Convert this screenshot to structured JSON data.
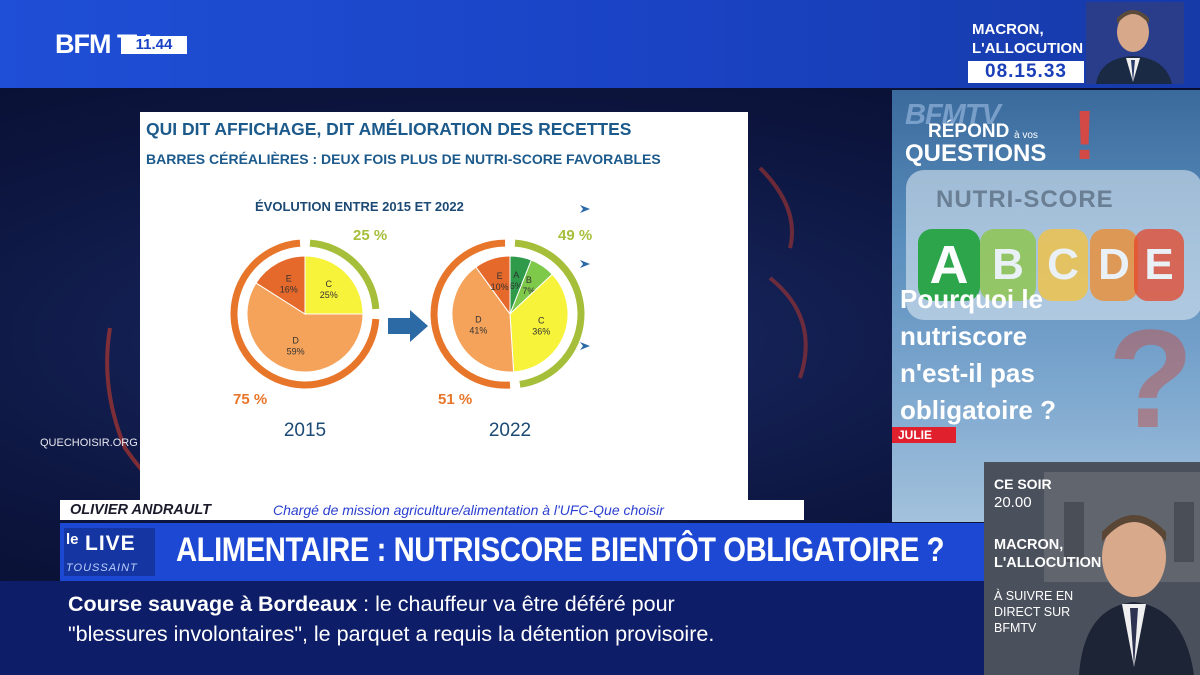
{
  "channel": {
    "logo": "BFM TV.",
    "clock": "11.44"
  },
  "promo_top": {
    "title": "MACRON, L'ALLOCUTION",
    "time": "08.15.33"
  },
  "slide": {
    "title": "QUI DIT AFFICHAGE, DIT AMÉLIORATION DES RECETTES",
    "subtitle": "BARRES CÉRÉALIÈRES : DEUX FOIS PLUS DE NUTRI-SCORE FAVORABLES",
    "heading": "ÉVOLUTION ENTRE 2015 ET 2022"
  },
  "chart_data": [
    {
      "type": "pie",
      "year": "2015",
      "slices": [
        {
          "label": "C",
          "value": 25,
          "color": "#f7f23a"
        },
        {
          "label": "D",
          "value": 59,
          "color": "#f5a35a"
        },
        {
          "label": "E",
          "value": 16,
          "color": "#e5692a"
        }
      ],
      "arc_labels": {
        "favorable": "25 %",
        "unfavorable": "75 %"
      }
    },
    {
      "type": "pie",
      "year": "2022",
      "slices": [
        {
          "label": "A",
          "value": 6,
          "color": "#2e9a4a"
        },
        {
          "label": "B",
          "value": 7,
          "color": "#7ec84a"
        },
        {
          "label": "C",
          "value": 36,
          "color": "#f7f23a"
        },
        {
          "label": "D",
          "value": 41,
          "color": "#f5a35a"
        },
        {
          "label": "E",
          "value": 10,
          "color": "#e5692a"
        }
      ],
      "arc_labels": {
        "favorable": "49 %",
        "unfavorable": "51 %"
      }
    }
  ],
  "source": "QUECHOISIR.ORG",
  "right_panel": {
    "brand_line": "BFMTV",
    "title_1": "RÉPOND",
    "title_small": "à vos",
    "title_2": "QUESTIONS",
    "nutriscore_title": "NUTRI-SCORE",
    "letters": [
      "A",
      "B",
      "C",
      "D",
      "E"
    ],
    "letter_colors": [
      "#27a544",
      "#8cc63f",
      "#f7c23a",
      "#f08a2a",
      "#e5472a"
    ],
    "question": "Pourquoi le nutriscore n'est-il pas obligatoire ?",
    "asker": "JULIE"
  },
  "ce_soir": {
    "line1": "CE SOIR",
    "line2": "20.00",
    "line3": "MACRON, L'ALLOCUTION",
    "line4": "À SUIVRE EN DIRECT SUR BFMTV"
  },
  "speaker": {
    "name": "OLIVIER ANDRAULT",
    "role": "Chargé de mission agriculture/alimentation à l'UFC-Que choisir"
  },
  "show": {
    "le": "le",
    "live": "LIVE",
    "sub": "TOUSSAINT"
  },
  "headline": "ALIMENTAIRE : NUTRISCORE BIENTÔT OBLIGATOIRE ?",
  "ticker": {
    "bold": "Course sauvage à Bordeaux",
    "sep": " : ",
    "rest": "le chauffeur va être déféré pour",
    "line2": "\"blessures involontaires\", le parquet a requis la détention provisoire."
  }
}
